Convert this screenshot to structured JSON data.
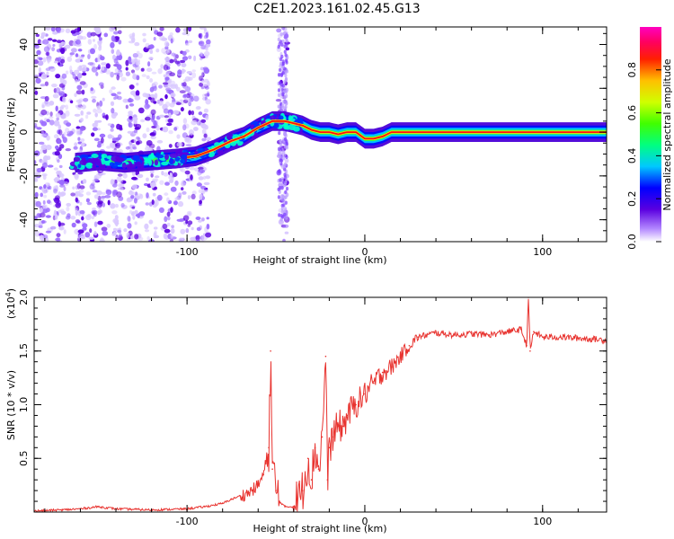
{
  "title": "C2E1.2023.161.02.45.G13",
  "chart_data": [
    {
      "type": "heatmap",
      "xlabel": "Height of straight line (km)",
      "ylabel": "Frequency (Hz)",
      "xlim": [
        -186,
        136
      ],
      "ylim": [
        -50,
        48
      ],
      "x_ticks": [
        -100,
        0,
        100
      ],
      "y_ticks": [
        -40,
        -20,
        0,
        20,
        40
      ],
      "ridge": {
        "x": [
          -163,
          -150,
          -135,
          -120,
          -105,
          -95,
          -85,
          -75,
          -68,
          -60,
          -52,
          -45,
          -40,
          -35,
          -30,
          -25,
          -20,
          -15,
          -10,
          -5,
          0,
          5,
          10,
          15,
          136
        ],
        "y": [
          -14,
          -13,
          -14,
          -13,
          -12,
          -11,
          -8,
          -4,
          -2,
          2,
          5,
          5,
          4,
          3,
          1,
          0,
          0,
          -1,
          0,
          0,
          -3,
          -3,
          -2,
          0,
          0
        ]
      },
      "colorbar": {
        "label": "Normalized spectral amplitude",
        "range": [
          0,
          1
        ],
        "ticks": [
          "0.0",
          "0.2",
          "0.4",
          "0.6",
          "0.8"
        ],
        "tick_values": [
          0,
          0.2,
          0.4,
          0.6,
          0.8
        ]
      }
    },
    {
      "type": "line",
      "xlabel": "Height of straight line (km)",
      "ylabel": "SNR (10 * v/v)",
      "y_multiplier": "(x10",
      "y_multiplier_exp": "4",
      "xlim": [
        -186,
        136
      ],
      "ylim": [
        0,
        2.0
      ],
      "x_ticks": [
        -100,
        0,
        100
      ],
      "y_ticks": [
        "0.5",
        "1.0",
        "1.5",
        "2.0"
      ],
      "y_tick_values": [
        0.5,
        1.0,
        1.5,
        2.0
      ],
      "series": [
        {
          "color": "#e8332f",
          "x": [
            -186,
            -170,
            -160,
            -150,
            -140,
            -120,
            -100,
            -90,
            -80,
            -75,
            -70,
            -65,
            -60,
            -57,
            -54,
            -53,
            -52,
            -50,
            -48,
            -45,
            -40,
            -35,
            -32,
            -30,
            -28,
            -26,
            -24,
            -22,
            -21,
            -20,
            -18,
            -15,
            -12,
            -10,
            -5,
            0,
            5,
            10,
            15,
            20,
            25,
            30,
            40,
            50,
            60,
            70,
            80,
            88,
            91,
            92,
            93,
            95,
            100,
            110,
            120,
            130,
            136
          ],
          "y": [
            0.01,
            0.02,
            0.03,
            0.05,
            0.03,
            0.02,
            0.03,
            0.05,
            0.08,
            0.12,
            0.15,
            0.18,
            0.25,
            0.35,
            0.6,
            1.5,
            0.4,
            0.2,
            0.1,
            0.05,
            0.05,
            0.2,
            0.5,
            0.3,
            0.6,
            0.4,
            0.7,
            1.45,
            0.3,
            0.6,
            0.7,
            0.8,
            0.8,
            0.9,
            1.0,
            1.1,
            1.2,
            1.3,
            1.35,
            1.45,
            1.55,
            1.63,
            1.67,
            1.65,
            1.66,
            1.65,
            1.68,
            1.7,
            1.55,
            2.0,
            1.5,
            1.68,
            1.63,
            1.63,
            1.62,
            1.61,
            1.6
          ]
        }
      ]
    }
  ]
}
